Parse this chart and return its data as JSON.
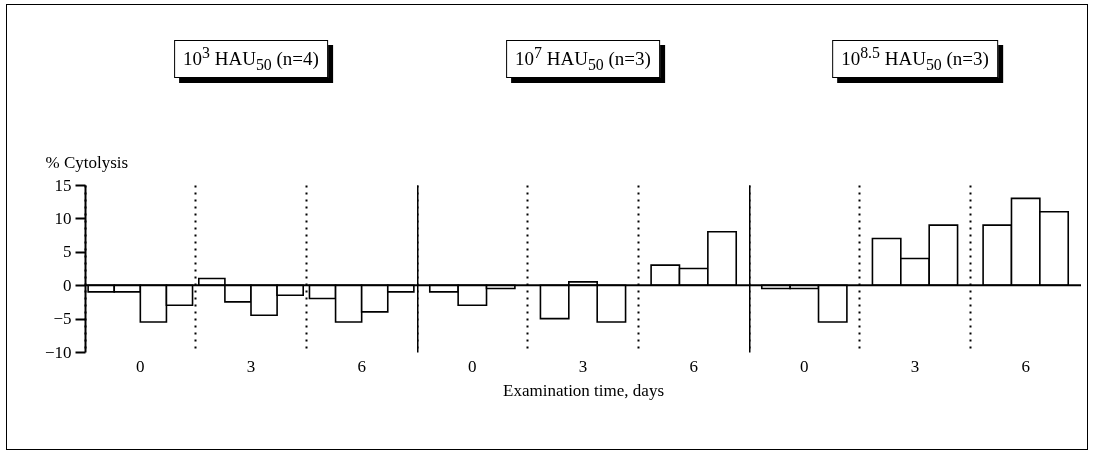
{
  "chart_data": [
    {
      "type": "bar",
      "title": "10$^{3}$ HAU$_{50}$ (n=4)",
      "ylabel": "% Cytolysis",
      "categories": [
        "0",
        "3",
        "6"
      ],
      "ylim": [
        -10,
        15
      ],
      "yticks": [
        15,
        10,
        5,
        0,
        -5,
        -10
      ],
      "ref_lines": [
        {
          "axis": "y",
          "value": 0
        }
      ],
      "series": [
        {
          "color": "#ffffff",
          "values": [
            -1,
            1,
            -2
          ]
        },
        {
          "color": "#ffffff",
          "values": [
            -1,
            -2.5,
            -5.5
          ]
        },
        {
          "color": "#ffffff",
          "values": [
            -5.5,
            -4.5,
            -4
          ]
        },
        {
          "color": "#ffffff",
          "values": [
            -3,
            -1.5,
            -1
          ]
        }
      ]
    },
    {
      "type": "bar",
      "title": "10$^{7}$ HAU$_{50}$ (n=3)",
      "xlabel": "Examination time, days",
      "categories": [
        "0",
        "3",
        "6"
      ],
      "ylim": [
        -10,
        15
      ],
      "tick_labels": "x",
      "ref_lines": [
        {
          "axis": "y",
          "value": 0
        }
      ],
      "series": [
        {
          "color": "#ffffff",
          "values": [
            -1,
            -5,
            3
          ]
        },
        {
          "color": "#ffffff",
          "values": [
            -3,
            0.5,
            2.5
          ]
        },
        {
          "color": "#ffffff",
          "values": [
            -0.5,
            -5.5,
            8
          ]
        }
      ]
    },
    {
      "type": "bar",
      "title": "10$^{8.5}$ HAU$_{50}$ (n=3)",
      "categories": [
        "0",
        "3",
        "6"
      ],
      "ylim": [
        -10,
        15
      ],
      "tick_labels": "x",
      "ref_lines": [
        {
          "axis": "y",
          "value": 0
        }
      ],
      "series": [
        {
          "color": "#ffffff",
          "values": [
            -0.5,
            7,
            9
          ]
        },
        {
          "color": "#ffffff",
          "values": [
            -0.5,
            4,
            13
          ]
        },
        {
          "color": "#ffffff",
          "values": [
            -5.5,
            9,
            11
          ]
        }
      ]
    }
  ]
}
